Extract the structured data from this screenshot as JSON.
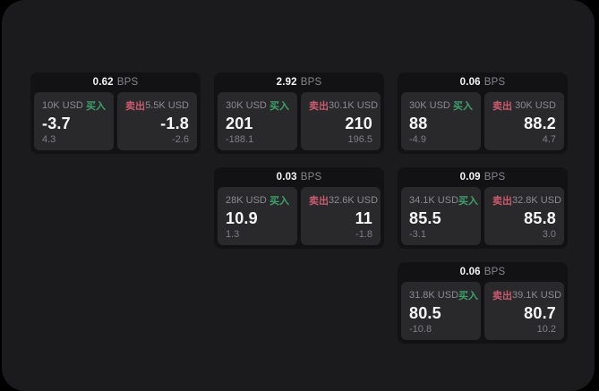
{
  "labels": {
    "bps_unit": "BPS",
    "buy": "买入",
    "sell": "卖出"
  },
  "colors": {
    "buy": "#3da06b",
    "sell": "#ca5a6e",
    "panel_bg": "#1b1b1d",
    "card_bg": "#121214",
    "tile_bg": "#29292c"
  },
  "cards": [
    {
      "bps": "0.62",
      "buy": {
        "amount": "10K USD",
        "price": "-3.7",
        "delta": "4.3"
      },
      "sell": {
        "amount": "5.5K USD",
        "price": "-1.8",
        "delta": "-2.6"
      }
    },
    {
      "bps": "2.92",
      "buy": {
        "amount": "30K USD",
        "price": "201",
        "delta": "-188.1"
      },
      "sell": {
        "amount": "30.1K USD",
        "price": "210",
        "delta": "196.5"
      }
    },
    {
      "bps": "0.06",
      "buy": {
        "amount": "30K USD",
        "price": "88",
        "delta": "-4.9"
      },
      "sell": {
        "amount": "30K USD",
        "price": "88.2",
        "delta": "4.7"
      }
    },
    {
      "bps": "0.03",
      "buy": {
        "amount": "28K USD",
        "price": "10.9",
        "delta": "1.3"
      },
      "sell": {
        "amount": "32.6K USD",
        "price": "11",
        "delta": "-1.8"
      }
    },
    {
      "bps": "0.09",
      "buy": {
        "amount": "34.1K USD",
        "price": "85.5",
        "delta": "-3.1"
      },
      "sell": {
        "amount": "32.8K USD",
        "price": "85.8",
        "delta": "3.0"
      }
    },
    {
      "bps": "0.06",
      "buy": {
        "amount": "31.8K USD",
        "price": "80.5",
        "delta": "-10.8"
      },
      "sell": {
        "amount": "39.1K USD",
        "price": "80.7",
        "delta": "10.2"
      }
    }
  ]
}
